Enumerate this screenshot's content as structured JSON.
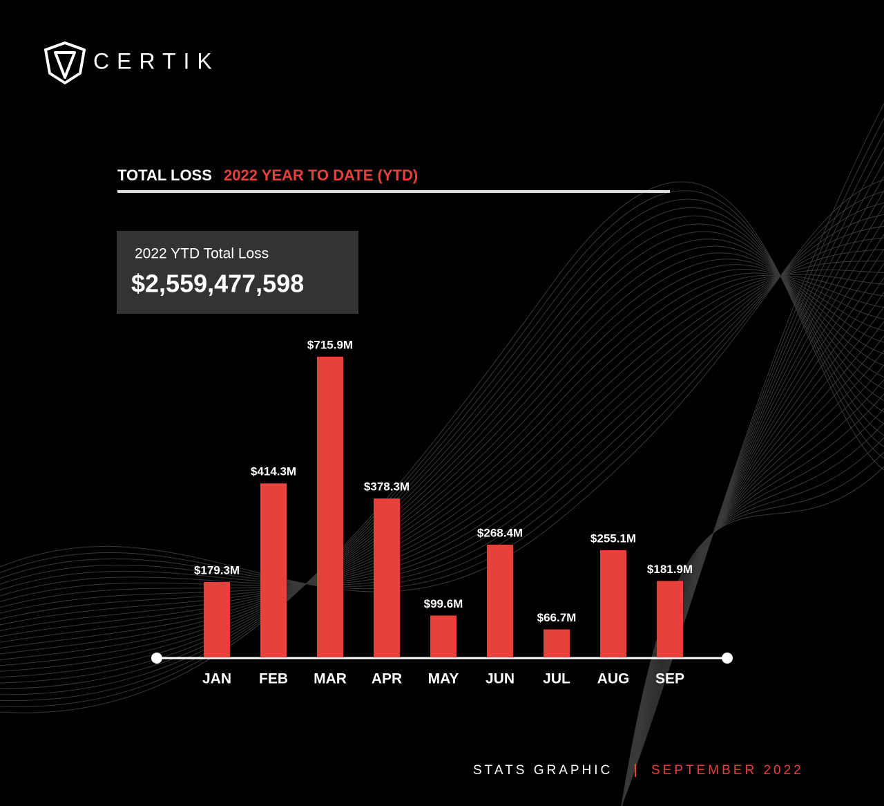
{
  "brand": "CERTIK",
  "chart_data": {
    "type": "bar",
    "title": "TOTAL LOSS",
    "subtitle": "2022 YEAR TO DATE (YTD)",
    "summary": {
      "label": "2022 YTD Total Loss",
      "value": "$2,559,477,598"
    },
    "categories": [
      "JAN",
      "FEB",
      "MAR",
      "APR",
      "MAY",
      "JUN",
      "JUL",
      "AUG",
      "SEP"
    ],
    "values": [
      179.3,
      414.3,
      715.9,
      378.3,
      99.6,
      268.4,
      66.7,
      255.1,
      181.9
    ],
    "value_labels": [
      "$179.3M",
      "$414.3M",
      "$715.9M",
      "$378.3M",
      "$99.6M",
      "$268.4M",
      "$66.7M",
      "$255.1M",
      "$181.9M"
    ],
    "color": "#e8403b"
  },
  "footer": {
    "left": "STATS GRAPHIC",
    "right": "SEPTEMBER 2022"
  }
}
